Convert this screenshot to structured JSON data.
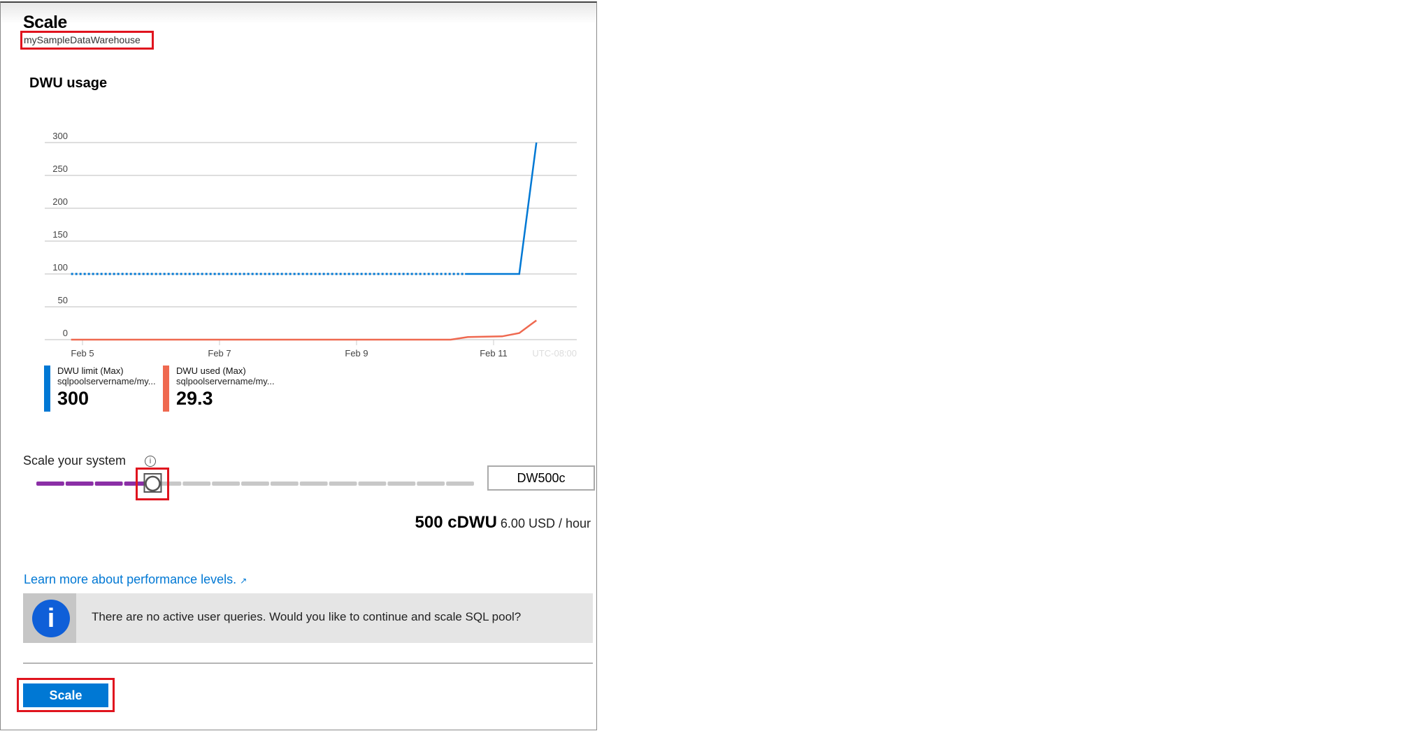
{
  "header": {
    "title": "Scale",
    "subtitle": "mySampleDataWarehouse"
  },
  "chart_title": "DWU usage",
  "chart_data": {
    "type": "line",
    "yticks": [
      0,
      50,
      100,
      150,
      200,
      250,
      300
    ],
    "ylim": [
      0,
      300
    ],
    "xticks": [
      "Feb 5",
      "Feb 7",
      "Feb 9",
      "Feb 11"
    ],
    "timezone_label": "UTC-08:00",
    "grid": true,
    "series": [
      {
        "name": "DWU limit (Max)",
        "color": "#0078d4",
        "points": [
          [
            "Feb 4 20:00",
            100
          ],
          [
            "Feb 10 14:00",
            100
          ],
          [
            "Feb 11 09:00",
            100
          ],
          [
            "Feb 11 15:00",
            300
          ]
        ],
        "dotted_until": "Feb 10 14:00"
      },
      {
        "name": "DWU used (Max)",
        "color": "#ef6950",
        "points": [
          [
            "Feb 4 20:00",
            0
          ],
          [
            "Feb 10 09:00",
            0
          ],
          [
            "Feb 10 15:00",
            4
          ],
          [
            "Feb 11 03:00",
            5
          ],
          [
            "Feb 11 09:00",
            10
          ],
          [
            "Feb 11 15:00",
            29.3
          ]
        ]
      }
    ]
  },
  "legend": [
    {
      "title": "DWU limit (Max)",
      "sub": "sqlpoolservername/my...",
      "value": "300",
      "color": "#0078d4"
    },
    {
      "title": "DWU used (Max)",
      "sub": "sqlpoolservername/my...",
      "value": "29.3",
      "color": "#ef6950"
    }
  ],
  "scale": {
    "label": "Scale your system",
    "info_icon": "i",
    "selected": "DW500c",
    "stop_index": 4,
    "stop_count": 16,
    "fill_color": "#8b2fa6"
  },
  "price": {
    "dwu": "500 cDWU",
    "cost": "6.00 USD / hour"
  },
  "learn_link": "Learn more about performance levels.",
  "external_icon": "↗",
  "banner": {
    "icon": "i",
    "message": "There are no active user queries. Would you like to continue and scale SQL pool?"
  },
  "button": {
    "label": "Scale"
  }
}
